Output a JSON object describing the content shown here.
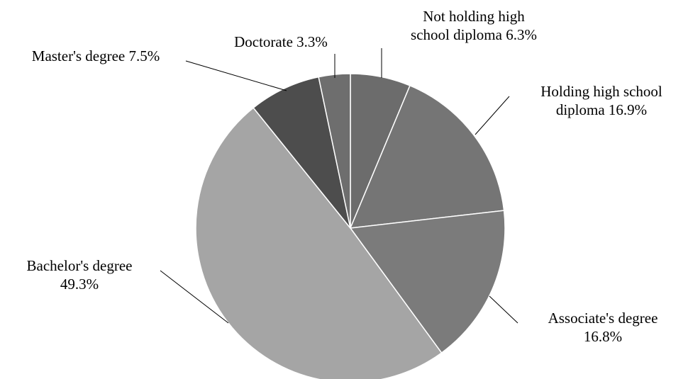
{
  "chart_data": {
    "type": "pie",
    "title": "",
    "start_angle_deg": 0,
    "direction": "clockwise",
    "slices": [
      {
        "label_lines": [
          "Not holding high",
          "school diploma 6.3%"
        ],
        "value": 6.3,
        "color": "#6c6c6c"
      },
      {
        "label_lines": [
          "Holding high school",
          "diploma 16.9%"
        ],
        "value": 16.9,
        "color": "#757575"
      },
      {
        "label_lines": [
          "Associate's degree",
          "16.8%"
        ],
        "value": 16.8,
        "color": "#7b7b7b"
      },
      {
        "label_lines": [
          "Bachelor's degree",
          "49.3%"
        ],
        "value": 49.3,
        "color": "#a5a5a5"
      },
      {
        "label_lines": [
          "Master's degree 7.5%"
        ],
        "value": 7.5,
        "color": "#4d4d4d"
      },
      {
        "label_lines": [
          "Doctorate 3.3%"
        ],
        "value": 3.3,
        "color": "#6e6e6e"
      }
    ]
  }
}
